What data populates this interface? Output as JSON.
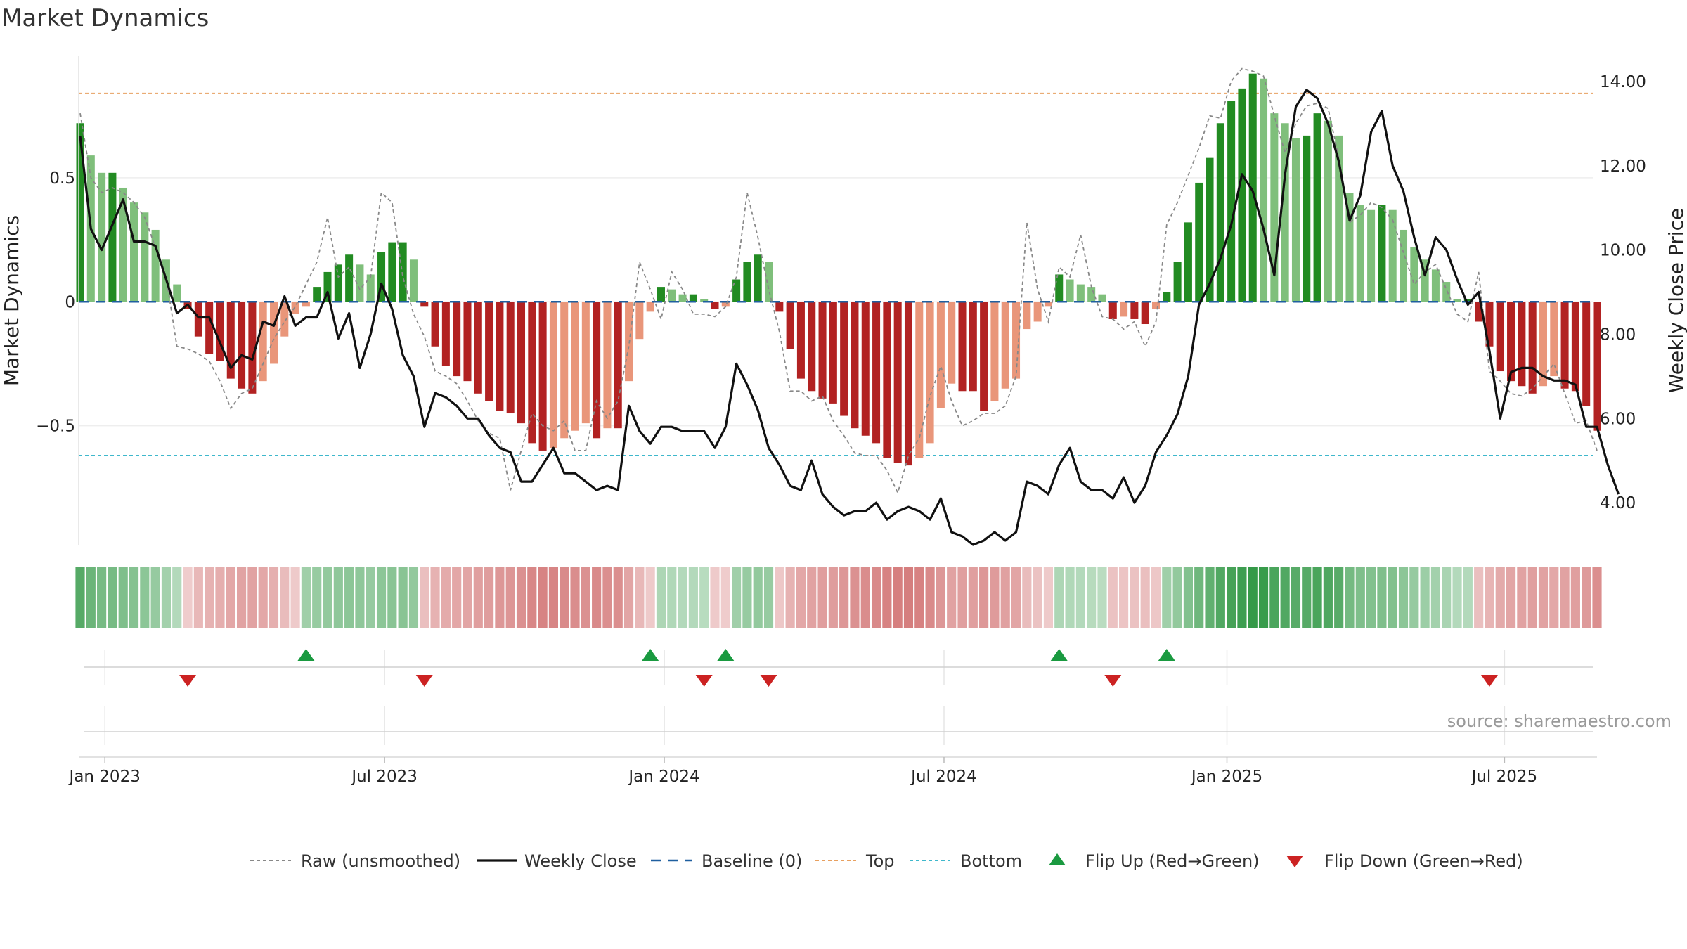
{
  "title": "Market Dynamics",
  "source": "source: sharemaestro.com",
  "chart_data": {
    "type": "bar",
    "title": "Market Dynamics",
    "ylabel_left": "Market Dynamics",
    "ylabel_right": "Weekly Close Price",
    "ylim_left": [
      -0.98,
      0.99
    ],
    "ylim_right": [
      3.0,
      14.6
    ],
    "left_ticks": [
      {
        "v": 0.5,
        "label": "0.5"
      },
      {
        "v": 0,
        "label": "0"
      },
      {
        "v": -0.5,
        "label": "−0.5"
      }
    ],
    "right_ticks": [
      {
        "v": 14,
        "label": "14.00"
      },
      {
        "v": 12,
        "label": "12.00"
      },
      {
        "v": 10,
        "label": "10.00"
      },
      {
        "v": 8,
        "label": "8.00"
      },
      {
        "v": 6,
        "label": "6.00"
      },
      {
        "v": 4,
        "label": "4.00"
      }
    ],
    "x_ticks": [
      {
        "w": 2.3,
        "label": "Jan 2023"
      },
      {
        "w": 28.3,
        "label": "Jul 2023"
      },
      {
        "w": 54.3,
        "label": "Jan 2024"
      },
      {
        "w": 80.3,
        "label": "Jul 2024"
      },
      {
        "w": 106.6,
        "label": "Jan 2025"
      },
      {
        "w": 132.4,
        "label": "Jul 2025"
      }
    ],
    "top_threshold": 0.84,
    "bottom_threshold": -0.62,
    "colors": {
      "strong_green": "#228b22",
      "light_green": "#7fbf7b",
      "strong_red": "#b22222",
      "light_red": "#e9967a",
      "top": "#e8a060",
      "bottom": "#3fb8cc",
      "baseline": "#1f5f9f",
      "raw": "#888888",
      "close": "#111111",
      "flip_up": "#1a9a40",
      "flip_down": "#cc2222"
    },
    "dynamics": [
      0.72,
      0.59,
      0.52,
      0.52,
      0.46,
      0.4,
      0.36,
      0.29,
      0.17,
      0.07,
      -0.03,
      -0.14,
      -0.21,
      -0.24,
      -0.31,
      -0.35,
      -0.37,
      -0.32,
      -0.25,
      -0.14,
      -0.05,
      -0.02,
      0.06,
      0.12,
      0.15,
      0.19,
      0.15,
      0.11,
      0.2,
      0.24,
      0.24,
      0.17,
      -0.02,
      -0.18,
      -0.26,
      -0.3,
      -0.32,
      -0.37,
      -0.4,
      -0.44,
      -0.45,
      -0.49,
      -0.57,
      -0.6,
      -0.59,
      -0.55,
      -0.52,
      -0.49,
      -0.55,
      -0.51,
      -0.51,
      -0.32,
      -0.15,
      -0.04,
      0.06,
      0.05,
      0.03,
      0.03,
      0.01,
      -0.03,
      -0.02,
      0.09,
      0.16,
      0.19,
      0.16,
      -0.04,
      -0.19,
      -0.31,
      -0.36,
      -0.39,
      -0.41,
      -0.46,
      -0.51,
      -0.54,
      -0.57,
      -0.63,
      -0.65,
      -0.66,
      -0.63,
      -0.57,
      -0.43,
      -0.33,
      -0.36,
      -0.36,
      -0.44,
      -0.4,
      -0.35,
      -0.31,
      -0.11,
      -0.08,
      -0.02,
      0.11,
      0.09,
      0.07,
      0.06,
      0.03,
      -0.07,
      -0.06,
      -0.07,
      -0.09,
      -0.03,
      0.04,
      0.16,
      0.32,
      0.48,
      0.58,
      0.72,
      0.81,
      0.86,
      0.92,
      0.9,
      0.76,
      0.72,
      0.66,
      0.67,
      0.76,
      0.73,
      0.67,
      0.44,
      0.39,
      0.37,
      0.39,
      0.37,
      0.29,
      0.22,
      0.17,
      0.13,
      0.08,
      0.01,
      0.01,
      -0.08,
      -0.18,
      -0.28,
      -0.32,
      -0.34,
      -0.37,
      -0.34,
      -0.3,
      -0.35,
      -0.36,
      -0.42,
      -0.52
    ],
    "raw": [
      0.76,
      0.5,
      0.44,
      0.46,
      0.44,
      0.4,
      0.34,
      0.22,
      0.1,
      -0.18,
      -0.19,
      -0.21,
      -0.24,
      -0.32,
      -0.43,
      -0.37,
      -0.35,
      -0.25,
      -0.15,
      -0.08,
      -0.02,
      0.07,
      0.16,
      0.34,
      0.1,
      0.14,
      0.05,
      0.1,
      0.44,
      0.4,
      0.1,
      -0.05,
      -0.14,
      -0.28,
      -0.3,
      -0.33,
      -0.4,
      -0.48,
      -0.53,
      -0.55,
      -0.76,
      -0.6,
      -0.45,
      -0.5,
      -0.52,
      -0.48,
      -0.6,
      -0.6,
      -0.4,
      -0.47,
      -0.4,
      -0.18,
      0.16,
      0.05,
      -0.07,
      0.12,
      0.05,
      -0.05,
      -0.05,
      -0.06,
      -0.02,
      0.1,
      0.44,
      0.26,
      0.05,
      -0.12,
      -0.36,
      -0.36,
      -0.4,
      -0.38,
      -0.48,
      -0.54,
      -0.61,
      -0.62,
      -0.62,
      -0.68,
      -0.77,
      -0.62,
      -0.55,
      -0.38,
      -0.26,
      -0.4,
      -0.5,
      -0.48,
      -0.45,
      -0.45,
      -0.42,
      -0.3,
      0.32,
      0.05,
      -0.08,
      0.14,
      0.1,
      0.27,
      0.06,
      -0.06,
      -0.07,
      -0.11,
      -0.08,
      -0.18,
      -0.08,
      0.31,
      0.4,
      0.51,
      0.62,
      0.75,
      0.74,
      0.89,
      0.94,
      0.93,
      0.91,
      0.75,
      0.6,
      0.72,
      0.79,
      0.8,
      0.78,
      0.58,
      0.32,
      0.35,
      0.4,
      0.38,
      0.33,
      0.2,
      0.07,
      0.12,
      0.15,
      0.05,
      -0.05,
      -0.08,
      0.12,
      -0.28,
      -0.32,
      -0.37,
      -0.38,
      -0.35,
      -0.3,
      -0.25,
      -0.37,
      -0.49,
      -0.48,
      -0.6
    ],
    "close": [
      12.7,
      10.5,
      10.0,
      10.6,
      11.2,
      10.2,
      10.2,
      10.1,
      9.3,
      8.5,
      8.7,
      8.4,
      8.4,
      7.8,
      7.2,
      7.5,
      7.4,
      8.3,
      8.2,
      8.9,
      8.2,
      8.4,
      8.4,
      9.0,
      7.9,
      8.5,
      7.2,
      8.0,
      9.2,
      8.6,
      7.5,
      7.0,
      5.8,
      6.6,
      6.5,
      6.3,
      6.0,
      6.0,
      5.6,
      5.3,
      5.2,
      4.5,
      4.5,
      4.9,
      5.3,
      4.7,
      4.7,
      4.5,
      4.3,
      4.4,
      4.3,
      6.3,
      5.7,
      5.4,
      5.8,
      5.8,
      5.7,
      5.7,
      5.7,
      5.3,
      5.8,
      7.3,
      6.8,
      6.2,
      5.3,
      4.9,
      4.4,
      4.3,
      5.0,
      4.2,
      3.9,
      3.7,
      3.8,
      3.8,
      4.0,
      3.6,
      3.8,
      3.9,
      3.8,
      3.6,
      4.1,
      3.3,
      3.2,
      3.0,
      3.1,
      3.3,
      3.1,
      3.3,
      4.5,
      4.4,
      4.2,
      4.9,
      5.3,
      4.5,
      4.3,
      4.3,
      4.1,
      4.6,
      4.0,
      4.4,
      5.2,
      5.6,
      6.1,
      7.0,
      8.7,
      9.2,
      9.8,
      10.6,
      11.8,
      11.4,
      10.5,
      9.4,
      11.8,
      13.4,
      13.8,
      13.6,
      13.0,
      12.1,
      10.7,
      11.3,
      12.8,
      13.3,
      12.0,
      11.4,
      10.3,
      9.4,
      10.3,
      10.0,
      9.3,
      8.7,
      9.0,
      7.6,
      6.0,
      7.1,
      7.2,
      7.2,
      7.0,
      6.9,
      6.9,
      6.8,
      5.8,
      5.8,
      4.9,
      4.2
    ],
    "regime_strip": [
      0.75,
      0.62,
      0.55,
      0.55,
      0.5,
      0.46,
      0.42,
      0.36,
      0.28,
      0.18,
      -0.1,
      -0.25,
      -0.3,
      -0.33,
      -0.38,
      -0.41,
      -0.42,
      -0.38,
      -0.32,
      -0.22,
      -0.12,
      0.3,
      0.35,
      0.38,
      0.4,
      0.42,
      0.4,
      0.36,
      0.42,
      0.44,
      0.44,
      0.38,
      -0.2,
      -0.3,
      -0.35,
      -0.38,
      -0.4,
      -0.44,
      -0.46,
      -0.5,
      -0.51,
      -0.55,
      -0.62,
      -0.65,
      -0.64,
      -0.6,
      -0.58,
      -0.55,
      -0.6,
      -0.56,
      -0.56,
      -0.4,
      -0.25,
      -0.12,
      0.22,
      0.2,
      0.18,
      0.18,
      0.15,
      -0.12,
      -0.1,
      0.3,
      0.35,
      0.38,
      0.35,
      -0.14,
      -0.3,
      -0.38,
      -0.42,
      -0.45,
      -0.46,
      -0.5,
      -0.55,
      -0.58,
      -0.6,
      -0.66,
      -0.68,
      -0.69,
      -0.66,
      -0.6,
      -0.5,
      -0.42,
      -0.44,
      -0.44,
      -0.5,
      -0.47,
      -0.43,
      -0.4,
      -0.22,
      -0.18,
      -0.12,
      0.22,
      0.2,
      0.18,
      0.16,
      0.14,
      -0.18,
      -0.16,
      -0.18,
      -0.2,
      -0.14,
      0.3,
      0.38,
      0.48,
      0.6,
      0.68,
      0.78,
      0.85,
      0.9,
      0.95,
      0.93,
      0.82,
      0.78,
      0.74,
      0.75,
      0.82,
      0.79,
      0.74,
      0.56,
      0.5,
      0.48,
      0.5,
      0.48,
      0.42,
      0.36,
      0.32,
      0.28,
      0.24,
      0.18,
      0.18,
      -0.2,
      -0.28,
      -0.36,
      -0.4,
      -0.42,
      -0.44,
      -0.42,
      -0.38,
      -0.42,
      -0.44,
      -0.48,
      -0.56
    ],
    "flip_up_weeks": [
      21,
      53,
      60,
      91,
      101
    ],
    "flip_down_weeks": [
      10,
      32,
      58,
      64,
      96,
      131
    ],
    "legend": [
      {
        "key": "raw",
        "label": "Raw (unsmoothed)"
      },
      {
        "key": "close",
        "label": "Weekly Close"
      },
      {
        "key": "baseline",
        "label": "Baseline (0)"
      },
      {
        "key": "top",
        "label": "Top"
      },
      {
        "key": "bottom",
        "label": "Bottom"
      },
      {
        "key": "flip_up",
        "label": "Flip Up (Red→Green)"
      },
      {
        "key": "flip_down",
        "label": "Flip Down (Green→Red)"
      }
    ]
  }
}
